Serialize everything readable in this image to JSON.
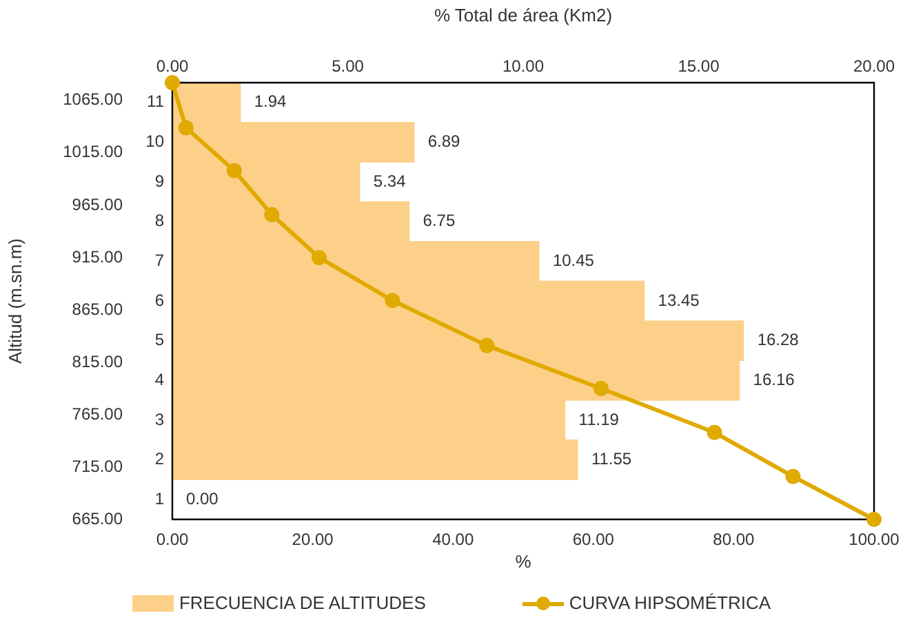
{
  "chart_data": [
    {
      "type": "bar",
      "orientation": "horizontal",
      "categories": [
        "11",
        "10",
        "9",
        "8",
        "7",
        "6",
        "5",
        "4",
        "3",
        "2",
        "1"
      ],
      "x2label": "% Total de área (Km2)",
      "x2lim": [
        0,
        20
      ],
      "x2ticks": [
        {
          "value": 0,
          "label": "0.00"
        },
        {
          "value": 5,
          "label": "5.00"
        },
        {
          "value": 10,
          "label": "10.00"
        },
        {
          "value": 15,
          "label": "15.00"
        },
        {
          "value": 20,
          "label": "20.00"
        }
      ],
      "series": [
        {
          "name": "FRECUENCIA DE ALTITUDES",
          "axis": "x2",
          "color": "#fdd08a",
          "values": [
            1.94,
            6.89,
            5.34,
            6.75,
            10.45,
            13.45,
            16.28,
            16.16,
            11.19,
            11.55,
            0
          ],
          "value_labels": [
            "1.94",
            "6.89",
            "5.34",
            "6.75",
            "10.45",
            "13.45",
            "16.28",
            "16.16",
            "11.19",
            "11.55",
            "0.00"
          ]
        }
      ],
      "legend": "bottom",
      "grid": false
    },
    {
      "type": "line",
      "xlabel": "%",
      "ylabel": "Altitud (m.sn.m)",
      "x": [
        0,
        1.94,
        8.83,
        14.17,
        20.92,
        31.37,
        44.82,
        61.1,
        77.26,
        88.45,
        100
      ],
      "xlim": [
        0,
        100
      ],
      "xticks": [
        {
          "value": 0,
          "label": "0.00"
        },
        {
          "value": 20,
          "label": "20.00"
        },
        {
          "value": 40,
          "label": "40.00"
        },
        {
          "value": 60,
          "label": "60.00"
        },
        {
          "value": 80,
          "label": "80.00"
        },
        {
          "value": 100,
          "label": "100.00"
        }
      ],
      "ylim": [
        665,
        1082
      ],
      "yticks": [
        {
          "value": 665,
          "label": "665.00"
        },
        {
          "value": 715,
          "label": "715.00"
        },
        {
          "value": 765,
          "label": "765.00"
        },
        {
          "value": 815,
          "label": "815.00"
        },
        {
          "value": 865,
          "label": "865.00"
        },
        {
          "value": 915,
          "label": "915.00"
        },
        {
          "value": 965,
          "label": "965.00"
        },
        {
          "value": 1015,
          "label": "1015.00"
        },
        {
          "value": 1065,
          "label": "1065.00"
        }
      ],
      "series": [
        {
          "name": "CURVA HIPSOMÉTRICA",
          "color": "#e0aa00",
          "values": [
            1082,
            1039,
            998,
            956,
            915,
            874,
            831,
            790,
            748,
            706,
            665
          ]
        }
      ],
      "marker": "circle",
      "legend": "bottom",
      "grid": false
    }
  ]
}
